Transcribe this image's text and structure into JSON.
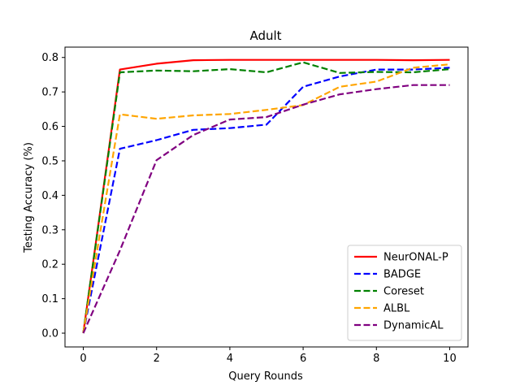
{
  "chart_data": {
    "type": "line",
    "title": "Adult",
    "xlabel": "Query Rounds",
    "ylabel": "Testing Accuracy (%)",
    "xlim": [
      -0.5,
      10.5
    ],
    "ylim": [
      -0.04,
      0.83
    ],
    "xticks": [
      0,
      2,
      4,
      6,
      8,
      10
    ],
    "yticks": [
      0.0,
      0.1,
      0.2,
      0.3,
      0.4,
      0.5,
      0.6,
      0.7,
      0.8
    ],
    "ytick_labels": [
      "0.0",
      "0.1",
      "0.2",
      "0.3",
      "0.4",
      "0.5",
      "0.6",
      "0.7",
      "0.8"
    ],
    "grid": false,
    "legend_position": "lower-right",
    "x": [
      0,
      1,
      2,
      3,
      4,
      5,
      6,
      7,
      8,
      9,
      10
    ],
    "series": [
      {
        "name": "NeurONAL-P",
        "color": "#ff0000",
        "dashed": false,
        "values": [
          0.0,
          0.765,
          0.782,
          0.792,
          0.793,
          0.793,
          0.793,
          0.793,
          0.793,
          0.792,
          0.793
        ]
      },
      {
        "name": "BADGE",
        "color": "#0000ff",
        "dashed": true,
        "values": [
          0.0,
          0.535,
          0.56,
          0.59,
          0.595,
          0.605,
          0.715,
          0.745,
          0.765,
          0.765,
          0.77
        ]
      },
      {
        "name": "Coreset",
        "color": "#008000",
        "dashed": true,
        "values": [
          0.0,
          0.757,
          0.762,
          0.76,
          0.766,
          0.757,
          0.786,
          0.755,
          0.758,
          0.757,
          0.766
        ]
      },
      {
        "name": "ALBL",
        "color": "#ffa500",
        "dashed": true,
        "values": [
          0.0,
          0.635,
          0.622,
          0.632,
          0.636,
          0.648,
          0.662,
          0.715,
          0.73,
          0.77,
          0.78
        ]
      },
      {
        "name": "DynamicAL",
        "color": "#800080",
        "dashed": true,
        "values": [
          0.0,
          0.24,
          0.502,
          0.575,
          0.62,
          0.627,
          0.663,
          0.693,
          0.708,
          0.72,
          0.72
        ]
      }
    ]
  }
}
